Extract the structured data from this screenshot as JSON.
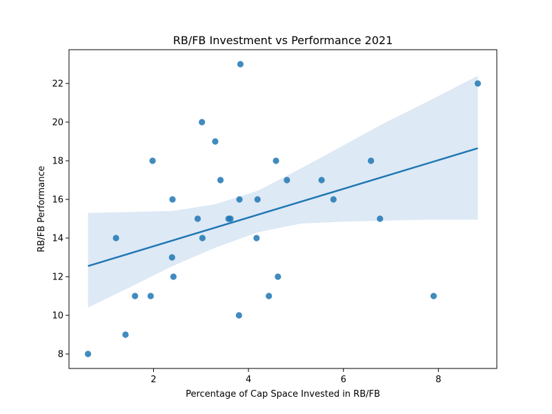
{
  "chart_data": {
    "type": "scatter",
    "title": "RB/FB Investment vs Performance 2021",
    "xlabel": "Percentage of Cap Space Invested in RB/FB",
    "ylabel": "RB/FB Performance",
    "xlim": [
      0.22,
      9.23
    ],
    "ylim": [
      7.25,
      23.75
    ],
    "xticks": [
      2,
      4,
      6,
      8
    ],
    "yticks": [
      8,
      10,
      12,
      14,
      16,
      18,
      20,
      22
    ],
    "grid": false,
    "colors": {
      "points": "#1f77b4",
      "line": "#1f77b4",
      "band": "#c6dbef"
    },
    "points": [
      {
        "x": 0.62,
        "y": 8
      },
      {
        "x": 1.21,
        "y": 14
      },
      {
        "x": 1.41,
        "y": 9
      },
      {
        "x": 1.61,
        "y": 11
      },
      {
        "x": 1.94,
        "y": 11
      },
      {
        "x": 1.98,
        "y": 18
      },
      {
        "x": 2.39,
        "y": 13
      },
      {
        "x": 2.4,
        "y": 16
      },
      {
        "x": 2.42,
        "y": 12
      },
      {
        "x": 2.93,
        "y": 15
      },
      {
        "x": 3.02,
        "y": 20
      },
      {
        "x": 3.03,
        "y": 14
      },
      {
        "x": 3.3,
        "y": 19
      },
      {
        "x": 3.41,
        "y": 17
      },
      {
        "x": 3.58,
        "y": 15
      },
      {
        "x": 3.62,
        "y": 15
      },
      {
        "x": 3.8,
        "y": 10
      },
      {
        "x": 3.81,
        "y": 16
      },
      {
        "x": 3.83,
        "y": 23
      },
      {
        "x": 4.17,
        "y": 14
      },
      {
        "x": 4.19,
        "y": 16
      },
      {
        "x": 4.43,
        "y": 11
      },
      {
        "x": 4.58,
        "y": 18
      },
      {
        "x": 4.62,
        "y": 12
      },
      {
        "x": 4.81,
        "y": 17
      },
      {
        "x": 5.54,
        "y": 17
      },
      {
        "x": 5.79,
        "y": 16
      },
      {
        "x": 6.58,
        "y": 18
      },
      {
        "x": 6.77,
        "y": 15
      },
      {
        "x": 7.9,
        "y": 11
      },
      {
        "x": 8.83,
        "y": 22
      }
    ],
    "regression": {
      "x": [
        0.62,
        8.83
      ],
      "y": [
        12.55,
        18.65
      ]
    },
    "confidence_band": {
      "x": [
        0.62,
        1.5,
        2.4,
        3.3,
        4.2,
        5.1,
        6.0,
        6.9,
        7.8,
        8.83
      ],
      "upper": [
        15.3,
        15.35,
        15.4,
        15.75,
        16.45,
        17.6,
        18.8,
        20.0,
        21.1,
        22.4
      ],
      "lower": [
        10.4,
        11.45,
        12.55,
        13.5,
        14.3,
        14.75,
        14.85,
        14.9,
        14.95,
        14.95
      ]
    }
  }
}
